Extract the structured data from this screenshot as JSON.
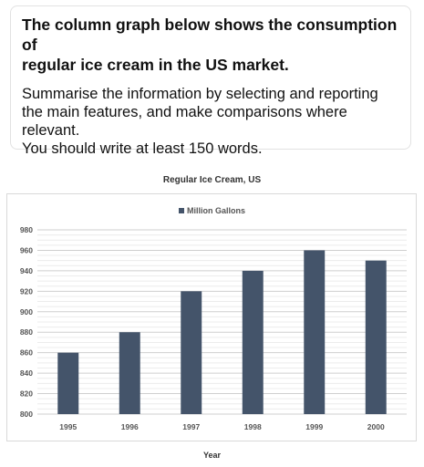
{
  "task": {
    "heading_line1": "The column graph below shows the consumption of",
    "heading_line2": "regular ice cream in the US market.",
    "body_line1": "Summarise the information by selecting and reporting",
    "body_line2": "the main features, and make comparisons where",
    "body_line3": "relevant.",
    "body_line4": "You should write at least 150 words."
  },
  "chart_data": {
    "type": "bar",
    "title": "Regular Ice Cream, US",
    "xlabel": "Year",
    "ylabel": "",
    "categories": [
      "1995",
      "1996",
      "1997",
      "1998",
      "1999",
      "2000"
    ],
    "series": [
      {
        "name": "Million Gallons",
        "values": [
          860,
          880,
          920,
          940,
          960,
          950
        ]
      }
    ],
    "ylim": [
      800,
      980
    ],
    "yticks": [
      800,
      820,
      840,
      860,
      880,
      900,
      920,
      940,
      960,
      980
    ],
    "grid": true,
    "legend": "top-center",
    "bar_color": "#44546a",
    "grid_color": "#d9d9d9"
  }
}
